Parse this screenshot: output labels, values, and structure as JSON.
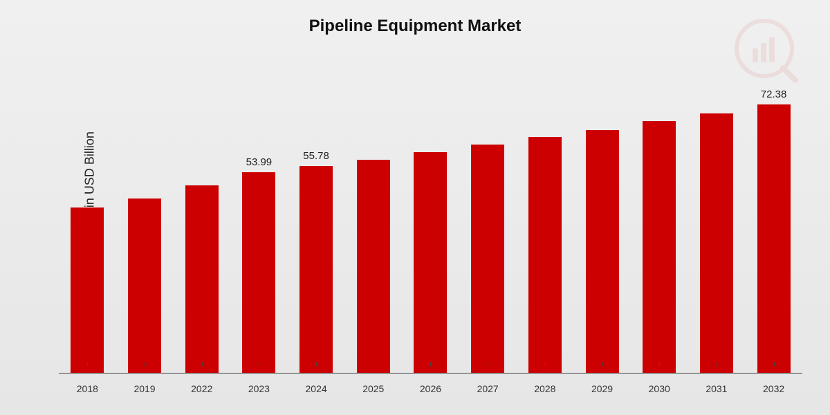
{
  "chart": {
    "type": "bar",
    "title": "Pipeline Equipment Market",
    "title_fontsize": 24,
    "ylabel": "Market Value in USD Billion",
    "ylabel_fontsize": 18,
    "categories": [
      "2018",
      "2019",
      "2022",
      "2023",
      "2024",
      "2025",
      "2026",
      "2027",
      "2028",
      "2029",
      "2030",
      "2031",
      "2032"
    ],
    "values": [
      44.5,
      47.0,
      50.5,
      53.99,
      55.78,
      57.5,
      59.5,
      61.5,
      63.5,
      65.5,
      67.8,
      70.0,
      72.38
    ],
    "value_labels": [
      "",
      "",
      "",
      "53.99",
      "55.78",
      "",
      "",
      "",
      "",
      "",
      "",
      "",
      "72.38"
    ],
    "bar_color": "#cc0000",
    "background_gradient_top": "#f0f0f0",
    "background_gradient_bottom": "#e6e6e6",
    "axis_color": "#444444",
    "text_color": "#222222",
    "xtick_fontsize": 14,
    "value_label_fontsize": 15,
    "ylim": [
      0,
      80
    ],
    "bar_width_ratio": 0.62,
    "watermark_opacity": 0.07,
    "watermark_color": "#cc0000"
  }
}
